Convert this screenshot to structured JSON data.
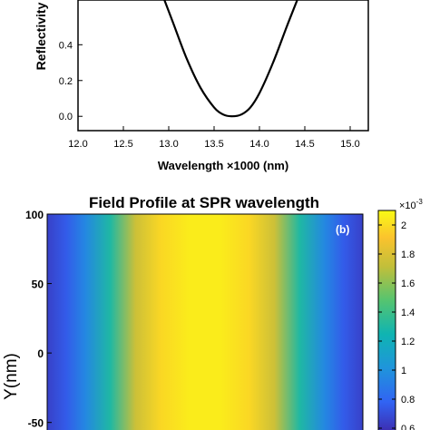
{
  "chart_data": [
    {
      "type": "line",
      "title": "",
      "xlabel": "Wavelength ×1000 (nm)",
      "ylabel": "Reflectivity",
      "xlim": [
        12.0,
        15.2
      ],
      "ylim": [
        -0.08,
        0.65
      ],
      "xticks": [
        "12.0",
        "12.5",
        "13.0",
        "13.5",
        "14.0",
        "14.5",
        "15.0"
      ],
      "yticks": [
        "0.0",
        "0.2",
        "0.4"
      ],
      "grid": false,
      "series": [
        {
          "x": [
            12.93,
            13.05,
            13.2,
            13.35,
            13.5,
            13.6,
            13.7,
            13.8,
            13.9,
            14.0,
            14.15,
            14.3,
            14.44
          ],
          "y": [
            0.68,
            0.52,
            0.32,
            0.16,
            0.05,
            0.01,
            0.0,
            0.01,
            0.05,
            0.13,
            0.3,
            0.5,
            0.68
          ],
          "color": "#000000"
        }
      ]
    },
    {
      "type": "heatmap",
      "title": "Field Profile at SPR wavelength",
      "panel_label": "(b)",
      "xlabel": "",
      "ylabel": "Y(nm)",
      "ylim": [
        -60,
        100
      ],
      "yticks": [
        "100",
        "50",
        "0",
        "-50"
      ],
      "description_values": "field intensity varies along x, constant along y",
      "profile_x_fraction": [
        0.0,
        0.06,
        0.12,
        0.2,
        0.28,
        0.36,
        0.45,
        0.55,
        0.64,
        0.72,
        0.8,
        0.88,
        0.94,
        1.0
      ],
      "profile_values": [
        0.65,
        0.75,
        0.95,
        1.3,
        1.75,
        1.98,
        2.05,
        2.05,
        1.98,
        1.75,
        1.3,
        0.95,
        0.75,
        0.65
      ],
      "colorbar": {
        "exponent": "×10",
        "exponent_power": "-3",
        "range": [
          0.55,
          2.1
        ],
        "ticks": [
          "2",
          "1.8",
          "1.6",
          "1.4",
          "1.2",
          "1",
          "0.8",
          "0.6"
        ]
      }
    }
  ]
}
